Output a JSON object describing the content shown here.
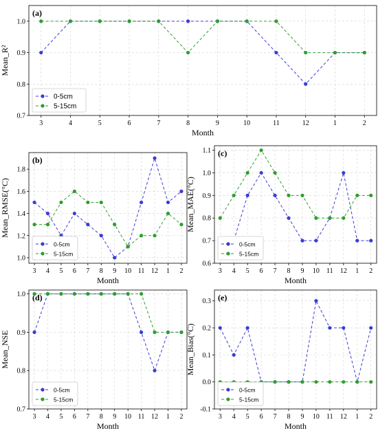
{
  "colors": {
    "series1": "#3b3bd6",
    "series2": "#2e9e2e",
    "grid": "#d0d0d0"
  },
  "months": [
    "3",
    "4",
    "5",
    "6",
    "7",
    "8",
    "9",
    "10",
    "11",
    "12",
    "1",
    "2"
  ],
  "chart_data": [
    {
      "type": "line",
      "panel_label": "(a)",
      "xlabel": "Month",
      "ylabel": "Mean_R²",
      "categories": [
        "3",
        "4",
        "5",
        "6",
        "7",
        "8",
        "9",
        "10",
        "11",
        "12",
        "1",
        "2"
      ],
      "ylim": [
        0.7,
        1.05
      ],
      "yticks": [
        "0.7",
        "0.8",
        "0.9",
        "1.0"
      ],
      "grid": true,
      "legend": "lower-left",
      "series": [
        {
          "name": "0-5cm",
          "values": [
            0.9,
            1.0,
            1.0,
            1.0,
            1.0,
            1.0,
            1.0,
            1.0,
            0.9,
            0.8,
            0.9,
            0.9
          ]
        },
        {
          "name": "5-15cm",
          "values": [
            1.0,
            1.0,
            1.0,
            1.0,
            1.0,
            0.9,
            1.0,
            1.0,
            1.0,
            0.9,
            0.9,
            0.9
          ]
        }
      ]
    },
    {
      "type": "line",
      "panel_label": "(b)",
      "xlabel": "Month",
      "ylabel": "Mean_RMSE(°C)",
      "categories": [
        "3",
        "4",
        "5",
        "6",
        "7",
        "8",
        "9",
        "10",
        "11",
        "12",
        "1",
        "2"
      ],
      "ylim": [
        0.95,
        1.95
      ],
      "yticks": [
        "1.0",
        "1.2",
        "1.4",
        "1.6",
        "1.8"
      ],
      "grid": true,
      "legend": "lower-left",
      "series": [
        {
          "name": "0-5cm",
          "values": [
            1.5,
            1.4,
            1.2,
            1.4,
            1.3,
            1.2,
            1.0,
            1.1,
            1.5,
            1.9,
            1.5,
            1.6
          ]
        },
        {
          "name": "5-15cm",
          "values": [
            1.3,
            1.3,
            1.5,
            1.6,
            1.5,
            1.5,
            1.3,
            1.1,
            1.2,
            1.2,
            1.4,
            1.3
          ]
        }
      ]
    },
    {
      "type": "line",
      "panel_label": "(c)",
      "xlabel": "Month",
      "ylabel": "Mean_MAE(°C)",
      "categories": [
        "3",
        "4",
        "5",
        "6",
        "7",
        "8",
        "9",
        "10",
        "11",
        "12",
        "1",
        "2"
      ],
      "ylim": [
        0.6,
        1.12
      ],
      "yticks": [
        "0.6",
        "0.7",
        "0.8",
        "0.9",
        "1.0",
        "1.1"
      ],
      "grid": true,
      "legend": "lower-left",
      "series": [
        {
          "name": "0-5cm",
          "values": [
            0.7,
            0.7,
            0.9,
            1.0,
            0.9,
            0.8,
            0.7,
            0.7,
            0.8,
            1.0,
            0.7,
            0.7
          ]
        },
        {
          "name": "5-15cm",
          "values": [
            0.8,
            0.9,
            1.0,
            1.1,
            1.0,
            0.9,
            0.9,
            0.8,
            0.8,
            0.8,
            0.9,
            0.9
          ]
        }
      ]
    },
    {
      "type": "line",
      "panel_label": "(d)",
      "xlabel": "Month",
      "ylabel": "Mean_NSE",
      "categories": [
        "3",
        "4",
        "5",
        "6",
        "7",
        "8",
        "9",
        "10",
        "11",
        "12",
        "1",
        "2"
      ],
      "ylim": [
        0.7,
        1.01
      ],
      "yticks": [
        "0.7",
        "0.8",
        "0.9",
        "1.0"
      ],
      "grid": true,
      "legend": "lower-left",
      "series": [
        {
          "name": "0-5cm",
          "values": [
            0.9,
            1.0,
            1.0,
            1.0,
            1.0,
            1.0,
            1.0,
            1.0,
            0.9,
            0.8,
            0.9,
            0.9
          ]
        },
        {
          "name": "5-15cm",
          "values": [
            1.0,
            1.0,
            1.0,
            1.0,
            1.0,
            1.0,
            1.0,
            1.0,
            1.0,
            0.9,
            0.9,
            0.9
          ]
        }
      ]
    },
    {
      "type": "line",
      "panel_label": "(e)",
      "xlabel": "Month",
      "ylabel": "Mean_Bias(°C)",
      "categories": [
        "3",
        "4",
        "5",
        "6",
        "7",
        "8",
        "9",
        "10",
        "11",
        "12",
        "1",
        "2"
      ],
      "ylim": [
        -0.1,
        0.34
      ],
      "yticks": [
        "-0.1",
        "0.0",
        "0.1",
        "0.2",
        "0.3"
      ],
      "grid": true,
      "legend": "lower-left",
      "series": [
        {
          "name": "0-5cm",
          "values": [
            0.2,
            0.1,
            0.2,
            0.0,
            0.0,
            0.0,
            0.0,
            0.3,
            0.2,
            0.2,
            0.0,
            0.2
          ]
        },
        {
          "name": "5-15cm",
          "values": [
            0.0,
            0.0,
            0.0,
            0.0,
            0.0,
            0.0,
            0.0,
            0.0,
            0.0,
            0.0,
            0.0,
            0.0
          ]
        }
      ]
    }
  ]
}
